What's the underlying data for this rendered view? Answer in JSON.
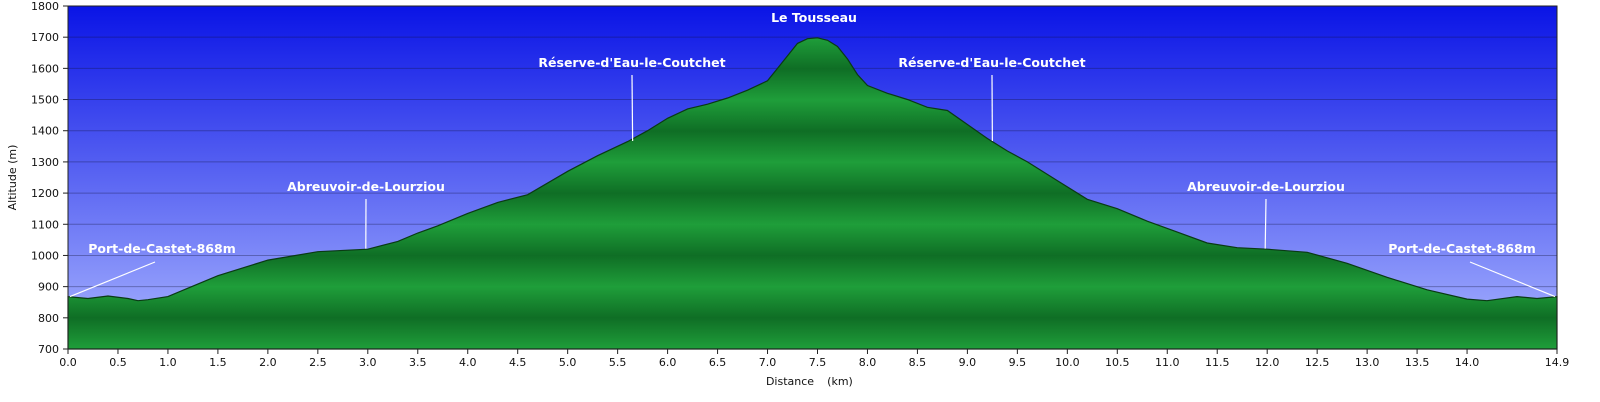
{
  "chart_data": {
    "type": "area",
    "xlabel": "Distance",
    "xunit": "(km)",
    "ylabel": "Altitude (m)",
    "xlim": [
      0,
      14.9
    ],
    "ylim": [
      700,
      1800
    ],
    "x_ticks": [
      "0.0",
      "0.5",
      "1.0",
      "1.5",
      "2.0",
      "2.5",
      "3.0",
      "3.5",
      "4.0",
      "4.5",
      "5.0",
      "5.5",
      "6.0",
      "6.5",
      "7.0",
      "7.5",
      "8.0",
      "8.5",
      "9.0",
      "9.5",
      "10.0",
      "10.5",
      "11.0",
      "11.5",
      "12.0",
      "12.5",
      "13.0",
      "13.5",
      "14.0",
      "14.9"
    ],
    "y_ticks": [
      "700",
      "800",
      "900",
      "1000",
      "1100",
      "1200",
      "1300",
      "1400",
      "1500",
      "1600",
      "1700",
      "1800"
    ],
    "grid": true,
    "colors": {
      "sky_top": "#0a14e6",
      "sky_bottom": "#aab6ff",
      "terrain": "#1f9e3a",
      "terrain_dark": "#0f6e25",
      "outline": "#0a3a14"
    },
    "series": [
      {
        "x": [
          0.0,
          0.2,
          0.4,
          0.6,
          0.7,
          0.8,
          1.0,
          1.2,
          1.5,
          2.0,
          2.5,
          3.0,
          3.3,
          3.5,
          3.7,
          4.0,
          4.3,
          4.6,
          5.0,
          5.3,
          5.6,
          5.8,
          6.0,
          6.2,
          6.4,
          6.6,
          6.8,
          7.0,
          7.1,
          7.2,
          7.3,
          7.4,
          7.5,
          7.6,
          7.7,
          7.8,
          7.9,
          8.0,
          8.2,
          8.4,
          8.6,
          8.8,
          9.0,
          9.2,
          9.4,
          9.6,
          9.9,
          10.2,
          10.5,
          10.8,
          11.1,
          11.4,
          11.7,
          12.0,
          12.4,
          12.8,
          13.2,
          13.6,
          14.0,
          14.2,
          14.5,
          14.7,
          14.9
        ],
        "y": [
          868,
          862,
          870,
          862,
          855,
          858,
          868,
          895,
          935,
          985,
          1012,
          1020,
          1045,
          1072,
          1095,
          1135,
          1170,
          1195,
          1270,
          1320,
          1365,
          1400,
          1440,
          1470,
          1485,
          1505,
          1530,
          1560,
          1600,
          1640,
          1680,
          1695,
          1698,
          1690,
          1670,
          1630,
          1580,
          1545,
          1520,
          1500,
          1475,
          1465,
          1420,
          1375,
          1335,
          1300,
          1240,
          1180,
          1150,
          1110,
          1075,
          1040,
          1025,
          1020,
          1010,
          975,
          930,
          890,
          860,
          855,
          868,
          862,
          868
        ]
      }
    ],
    "annotations": [
      {
        "label": "Le Tousseau",
        "x": 7.45,
        "y": 1698,
        "leader": false
      },
      {
        "label": "Réserve-d'Eau-le-Coutchet",
        "x": 5.65,
        "y": 1367,
        "leader": true
      },
      {
        "label": "Réserve-d'Eau-le-Coutchet",
        "x": 9.25,
        "y": 1367,
        "leader": true
      },
      {
        "label": "Abreuvoir-de-Lourziou",
        "x": 2.98,
        "y": 1022,
        "leader": true
      },
      {
        "label": "Abreuvoir-de-Lourziou",
        "x": 11.98,
        "y": 1022,
        "leader": true
      },
      {
        "label": "Port-de-Castet-868m",
        "x": 0.02,
        "y": 868,
        "leader": true
      },
      {
        "label": "Port-de-Castet-868m",
        "x": 14.88,
        "y": 868,
        "leader": true
      }
    ]
  }
}
